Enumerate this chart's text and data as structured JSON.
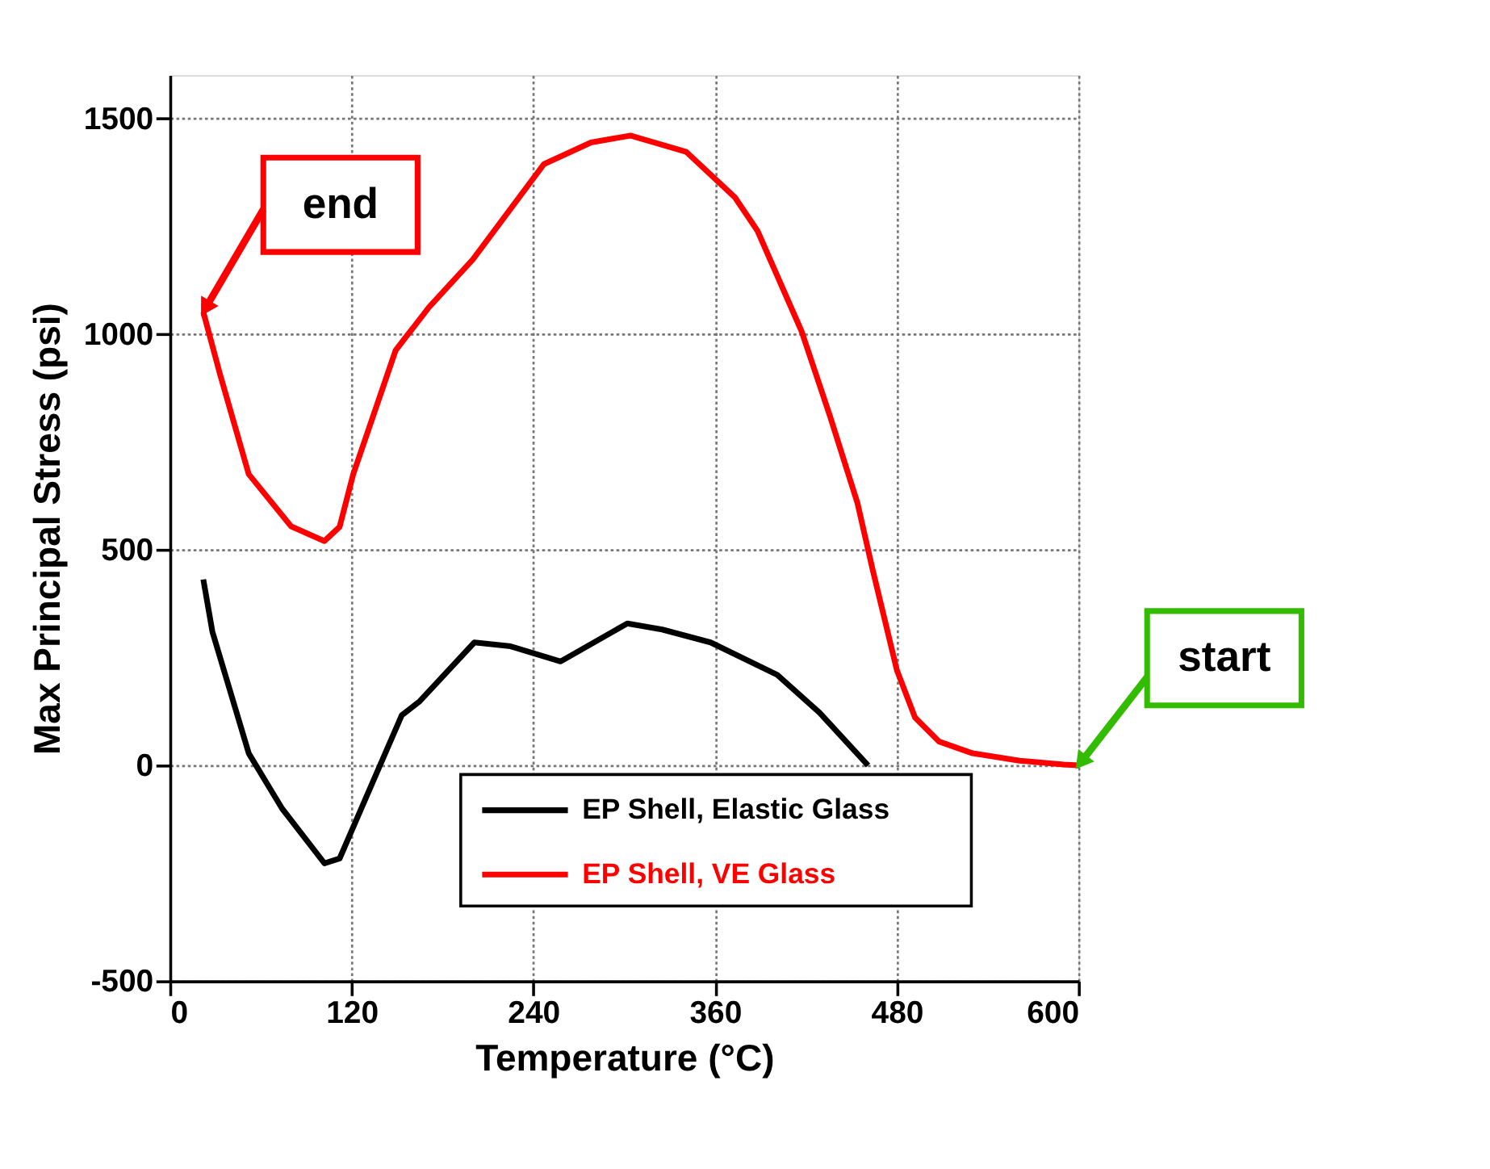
{
  "chart_data": {
    "type": "line",
    "xlabel": "Temperature (°C)",
    "ylabel": "Max Principal Stress (psi)",
    "xlim": [
      0,
      600
    ],
    "xticks": [
      0,
      120,
      240,
      360,
      480,
      600
    ],
    "ylim": [
      -500,
      1600
    ],
    "yticks": [
      -500,
      0,
      500,
      1000,
      1500
    ],
    "grid": true,
    "legend": "bottom",
    "line_style": "solid",
    "marker": "none",
    "series": [
      {
        "name": "EP Shell, Elastic Glass",
        "color": "#000000",
        "x": [
          22,
          28,
          52,
          74,
          102,
          112,
          153,
          165,
          201,
          225,
          258,
          302,
          325,
          357,
          401,
          429,
          461
        ],
        "values": [
          431,
          310,
          28,
          -100,
          -227,
          -216,
          116,
          149,
          285,
          276,
          241,
          329,
          315,
          285,
          210,
          122,
          0
        ]
      },
      {
        "name": "EP Shell, VE Glass",
        "color": "#ff0000",
        "x": [
          22,
          33,
          52,
          80,
          102,
          112,
          121,
          149,
          171,
          200,
          247,
          278,
          304,
          341,
          373,
          388,
          417,
          436,
          454,
          464,
          480,
          492,
          508,
          530,
          561,
          590,
          600
        ],
        "values": [
          1051,
          907,
          675,
          554,
          520,
          553,
          675,
          962,
          1062,
          1173,
          1394,
          1444,
          1460,
          1422,
          1317,
          1239,
          1007,
          808,
          608,
          454,
          221,
          111,
          55,
          28,
          11,
          2,
          0
        ]
      }
    ],
    "annotations": [
      {
        "text": "end",
        "x": 22,
        "y": 1051
      },
      {
        "text": "start",
        "x": 600,
        "y": 0
      }
    ]
  }
}
